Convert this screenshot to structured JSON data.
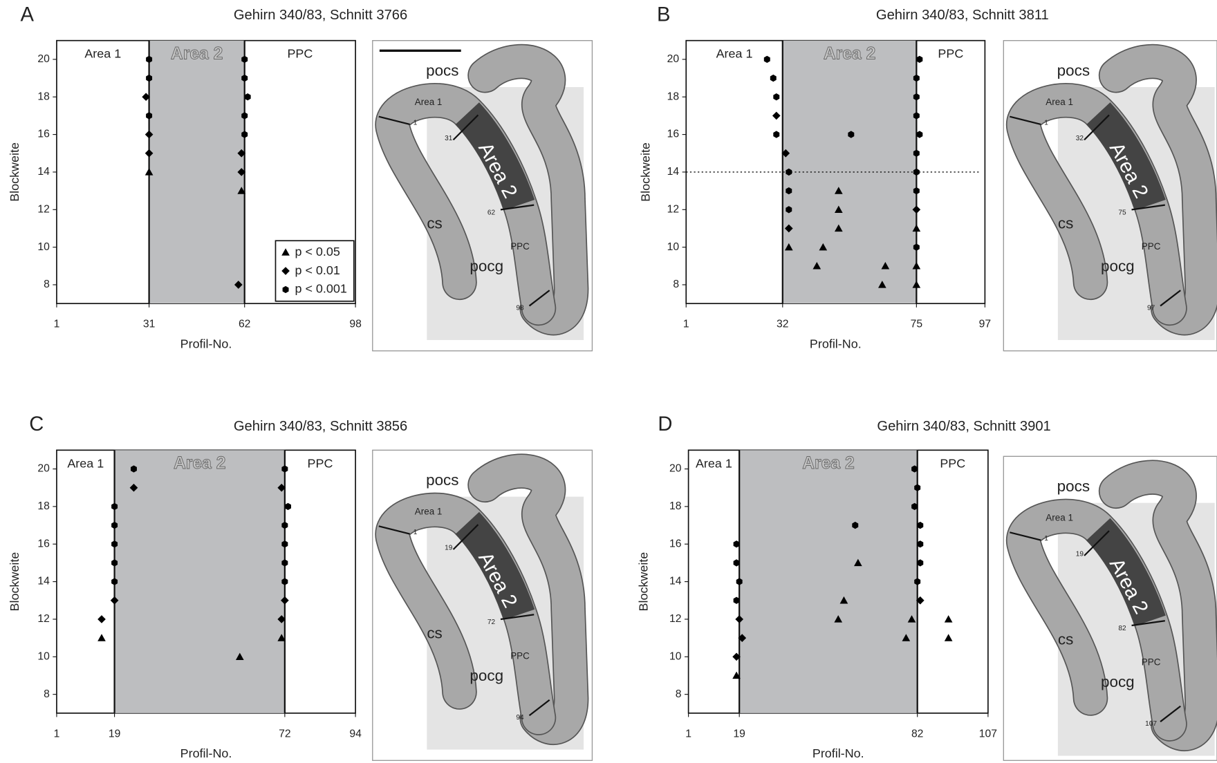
{
  "chart_data": [
    {
      "type": "scatter",
      "panel": "A",
      "title": "Gehirn 340/83, Schnitt 3766",
      "x_label": "Profil-No.",
      "y_label": "Blockweite",
      "xlim": [
        1,
        98
      ],
      "xticks": [
        1,
        31,
        62,
        98
      ],
      "ylim": [
        7,
        21
      ],
      "yticks": [
        8,
        10,
        12,
        14,
        16,
        18,
        20
      ],
      "regions": [
        "Area 1",
        "Area 2",
        "PPC"
      ],
      "boundaries": [
        31,
        62
      ],
      "legend": "lower right",
      "series": [
        {
          "name": "p < 0.05",
          "marker": "triangle",
          "color": "#000000",
          "x": [
            31,
            61
          ],
          "values": [
            14,
            13
          ]
        },
        {
          "name": "p < 0.01",
          "marker": "diamond",
          "color": "#000000",
          "x": [
            30,
            31,
            31,
            61,
            61,
            60
          ],
          "values": [
            18,
            16,
            15,
            15,
            14,
            8
          ]
        },
        {
          "name": "p < 0.001",
          "marker": "hexagon",
          "color": "#000000",
          "x": [
            31,
            31,
            31,
            62,
            62,
            63,
            62,
            62
          ],
          "values": [
            20,
            19,
            17,
            20,
            19,
            18,
            17,
            16
          ]
        }
      ],
      "diagram": {
        "labels": [
          "pocs",
          "Area 1",
          "Area 2",
          "cs",
          "pocg",
          "PPC",
          "1",
          "31",
          "62",
          "98"
        ]
      }
    },
    {
      "type": "scatter",
      "panel": "B",
      "title": "Gehirn 340/83, Schnitt 3811",
      "x_label": "Profil-No.",
      "y_label": "Blockweite",
      "xlim": [
        1,
        97
      ],
      "xticks": [
        1,
        32,
        75,
        97
      ],
      "ylim": [
        7,
        21
      ],
      "yticks": [
        8,
        10,
        12,
        14,
        16,
        18,
        20
      ],
      "regions": [
        "Area 1",
        "Area 2",
        "PPC"
      ],
      "boundaries": [
        32,
        75
      ],
      "hline": 14,
      "series": [
        {
          "marker": "triangle",
          "color": "#000000",
          "x": [
            34,
            45,
            43,
            50,
            50,
            50,
            65,
            64,
            75,
            75,
            75
          ],
          "values": [
            10,
            10,
            9,
            13,
            12,
            11,
            9,
            8,
            11,
            9,
            8
          ]
        },
        {
          "marker": "diamond",
          "color": "#000000",
          "x": [
            30,
            33,
            34,
            75
          ],
          "values": [
            17,
            15,
            11,
            12
          ]
        },
        {
          "marker": "hexagon",
          "color": "#000000",
          "x": [
            27,
            29,
            30,
            30,
            34,
            34,
            34,
            54,
            76,
            75,
            75,
            75,
            76,
            75,
            75,
            75,
            75
          ],
          "values": [
            20,
            19,
            18,
            16,
            14,
            13,
            12,
            16,
            20,
            19,
            18,
            17,
            16,
            15,
            14,
            13,
            10
          ]
        }
      ],
      "diagram": {
        "labels": [
          "pocs",
          "Area 1",
          "Area 2",
          "cs",
          "pocg",
          "PPC",
          "1",
          "32",
          "75",
          "97"
        ]
      }
    },
    {
      "type": "scatter",
      "panel": "C",
      "title": "Gehirn 340/83, Schnitt 3856",
      "x_label": "Profil-No.",
      "y_label": "Blockweite",
      "xlim": [
        1,
        94
      ],
      "xticks": [
        1,
        19,
        72,
        94
      ],
      "ylim": [
        7,
        21
      ],
      "yticks": [
        8,
        10,
        12,
        14,
        16,
        18,
        20
      ],
      "regions": [
        "Area 1",
        "Area 2",
        "PPC"
      ],
      "boundaries": [
        19,
        72
      ],
      "series": [
        {
          "marker": "triangle",
          "color": "#000000",
          "x": [
            15,
            58,
            71
          ],
          "values": [
            11,
            10,
            11
          ]
        },
        {
          "marker": "diamond",
          "color": "#000000",
          "x": [
            25,
            19,
            15,
            71,
            72,
            71
          ],
          "values": [
            19,
            13,
            12,
            19,
            13,
            12
          ]
        },
        {
          "marker": "hexagon",
          "color": "#000000",
          "x": [
            25,
            19,
            19,
            19,
            19,
            19,
            72,
            73,
            72,
            72,
            72,
            72
          ],
          "values": [
            20,
            18,
            17,
            16,
            15,
            14,
            20,
            18,
            17,
            16,
            15,
            14
          ]
        }
      ],
      "diagram": {
        "labels": [
          "pocs",
          "Area 1",
          "Area 2",
          "cs",
          "pocg",
          "PPC",
          "1",
          "19",
          "72",
          "94"
        ]
      }
    },
    {
      "type": "scatter",
      "panel": "D",
      "title": "Gehirn 340/83, Schnitt 3901",
      "x_label": "Profil-No.",
      "y_label": "Blockweite",
      "xlim": [
        1,
        107
      ],
      "xticks": [
        1,
        19,
        82,
        107
      ],
      "ylim": [
        7,
        21
      ],
      "yticks": [
        8,
        10,
        12,
        14,
        16,
        18,
        20
      ],
      "regions": [
        "Area 1",
        "Area 2",
        "PPC"
      ],
      "boundaries": [
        19,
        82
      ],
      "series": [
        {
          "marker": "triangle",
          "color": "#000000",
          "x": [
            18,
            61,
            56,
            54,
            80,
            78,
            93,
            93
          ],
          "values": [
            9,
            15,
            13,
            12,
            12,
            11,
            12,
            11
          ]
        },
        {
          "marker": "diamond",
          "color": "#000000",
          "x": [
            19,
            20,
            18,
            83
          ],
          "values": [
            12,
            11,
            10,
            13
          ]
        },
        {
          "marker": "hexagon",
          "color": "#000000",
          "x": [
            18,
            18,
            19,
            18,
            60,
            81,
            82,
            81,
            83,
            83,
            83,
            82
          ],
          "values": [
            16,
            15,
            14,
            13,
            17,
            20,
            19,
            18,
            17,
            16,
            15,
            14
          ]
        }
      ],
      "diagram": {
        "labels": [
          "pocs",
          "Area 1",
          "Area 2",
          "cs",
          "pocg",
          "PPC",
          "1",
          "19",
          "82",
          "107"
        ]
      }
    }
  ]
}
